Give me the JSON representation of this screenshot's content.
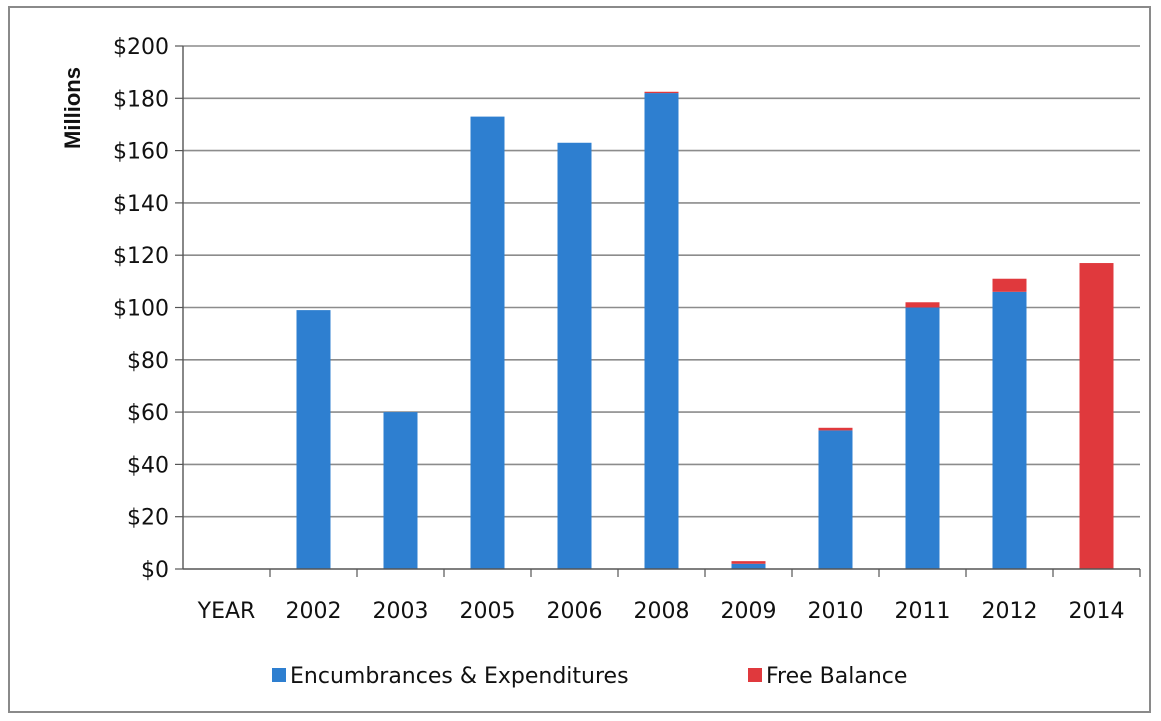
{
  "chart_data": {
    "type": "bar",
    "stacked": true,
    "categories": [
      "YEAR",
      "2002",
      "2003",
      "2005",
      "2006",
      "2008",
      "2009",
      "2010",
      "2011",
      "2012",
      "2014"
    ],
    "series": [
      {
        "name": "Encumbrances & Expenditures",
        "color": "#2e7fd0",
        "values": [
          0,
          99,
          60,
          173,
          163,
          182,
          2,
          53,
          100,
          106,
          0
        ]
      },
      {
        "name": "Free Balance",
        "color": "#e0393d",
        "values": [
          0,
          0,
          0,
          0,
          0,
          0.5,
          1,
          1,
          2,
          5,
          117
        ]
      }
    ],
    "ylabel": "Millions",
    "xlabel": "",
    "title": "",
    "ylim": [
      0,
      200
    ],
    "yticks": [
      0,
      20,
      40,
      60,
      80,
      100,
      120,
      140,
      160,
      180,
      200
    ],
    "ytick_labels": [
      "$0",
      "$20",
      "$40",
      "$60",
      "$80",
      "$100",
      "$120",
      "$140",
      "$160",
      "$180",
      "$200"
    ],
    "grid": true,
    "legend_position": "bottom"
  }
}
